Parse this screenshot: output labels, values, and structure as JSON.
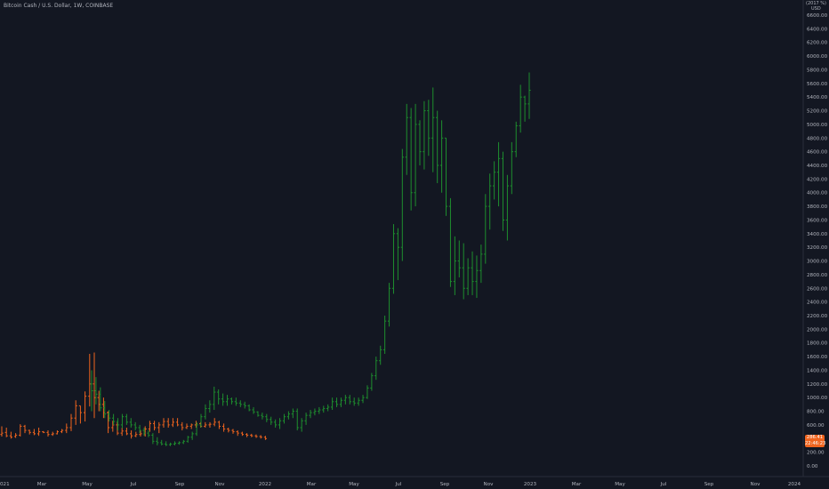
{
  "header": {
    "title": "Bitcoin Cash / U.S. Dollar, 1W, COINBASE"
  },
  "price_badge": {
    "price": "286.41",
    "countdown": "22:46:23",
    "color": "#f0641e"
  },
  "colors": {
    "background": "#131722",
    "bar_up": "#26a69a",
    "bar_green": "#1e8e2e",
    "bar_orange": "#f0641e",
    "axis_text": "#b2b5be",
    "axis_line": "#2a2e39"
  },
  "chart_data": {
    "type": "bar",
    "y_axis_unit_lines": [
      "(2017 %)",
      "USD"
    ],
    "y_ticks": [
      "6600.00",
      "6400.00",
      "6200.00",
      "6000.00",
      "5800.00",
      "5600.00",
      "5400.00",
      "5200.00",
      "5000.00",
      "4800.00",
      "4600.00",
      "4400.00",
      "4200.00",
      "4000.00",
      "3800.00",
      "3600.00",
      "3400.00",
      "3200.00",
      "3000.00",
      "2800.00",
      "2600.00",
      "2400.00",
      "2200.00",
      "2000.00",
      "1800.00",
      "1600.00",
      "1400.00",
      "1200.00",
      "1000.00",
      "800.00",
      "600.00",
      "400.00",
      "200.00",
      "0.00"
    ],
    "x_ticks": [
      "021",
      "Mar",
      "May",
      "Jul",
      "Sep",
      "Nov",
      "2022",
      "Mar",
      "May",
      "Jul",
      "Sep",
      "Nov",
      "2023",
      "Mar",
      "May",
      "Jul",
      "Sep",
      "Nov",
      "2024"
    ],
    "ylim": [
      0,
      6700
    ],
    "series": [
      {
        "color": "orange",
        "values": [
          [
            460,
            430,
            580,
            480
          ],
          [
            490,
            420,
            560,
            440
          ],
          [
            440,
            400,
            500,
            420
          ],
          [
            430,
            410,
            480,
            450
          ],
          [
            450,
            430,
            610,
            580
          ],
          [
            580,
            480,
            600,
            520
          ],
          [
            520,
            460,
            530,
            490
          ],
          [
            490,
            450,
            540,
            470
          ],
          [
            470,
            440,
            560,
            500
          ],
          [
            500,
            480,
            510,
            490
          ],
          [
            490,
            430,
            520,
            460
          ],
          [
            460,
            440,
            500,
            470
          ],
          [
            470,
            460,
            520,
            500
          ],
          [
            500,
            480,
            540,
            520
          ],
          [
            520,
            480,
            620,
            560
          ],
          [
            560,
            510,
            760,
            700
          ],
          [
            700,
            600,
            960,
            880
          ],
          [
            880,
            620,
            880,
            780
          ],
          [
            780,
            650,
            1090,
            1020
          ],
          [
            1020,
            870,
            1640,
            1200
          ],
          [
            1200,
            700,
            1660,
            1000
          ],
          [
            1000,
            800,
            1100,
            900
          ],
          [
            900,
            700,
            1000,
            780
          ],
          [
            780,
            480,
            800,
            560
          ],
          [
            560,
            500,
            660,
            600
          ],
          [
            600,
            450,
            640,
            480
          ],
          [
            480,
            440,
            560,
            510
          ],
          [
            510,
            450,
            560,
            470
          ],
          [
            470,
            400,
            520,
            440
          ],
          [
            440,
            420,
            500,
            460
          ],
          [
            460,
            430,
            520,
            470
          ],
          [
            470,
            430,
            580,
            540
          ],
          [
            540,
            500,
            660,
            620
          ],
          [
            620,
            520,
            660,
            560
          ],
          [
            560,
            480,
            640,
            600
          ],
          [
            600,
            560,
            700,
            650
          ],
          [
            650,
            560,
            700,
            600
          ],
          [
            600,
            570,
            700,
            640
          ],
          [
            640,
            580,
            700,
            600
          ],
          [
            600,
            520,
            640,
            560
          ],
          [
            560,
            540,
            620,
            580
          ],
          [
            580,
            540,
            620,
            600
          ],
          [
            600,
            560,
            660,
            620
          ],
          [
            620,
            560,
            640,
            580
          ],
          [
            580,
            560,
            640,
            600
          ],
          [
            600,
            560,
            640,
            610
          ],
          [
            610,
            580,
            700,
            640
          ],
          [
            640,
            540,
            660,
            580
          ],
          [
            580,
            500,
            620,
            540
          ],
          [
            540,
            490,
            560,
            520
          ],
          [
            520,
            470,
            540,
            500
          ],
          [
            500,
            440,
            520,
            480
          ],
          [
            480,
            440,
            500,
            460
          ],
          [
            460,
            420,
            480,
            450
          ],
          [
            450,
            420,
            470,
            440
          ],
          [
            440,
            410,
            460,
            430
          ],
          [
            430,
            400,
            450,
            420
          ],
          [
            420,
            380,
            440,
            400
          ]
        ]
      },
      {
        "color": "green",
        "values": [
          [
            1200,
            800,
            1400,
            1100
          ],
          [
            1100,
            900,
            1300,
            1050
          ],
          [
            1050,
            800,
            1150,
            850
          ],
          [
            850,
            700,
            950,
            760
          ],
          [
            760,
            650,
            820,
            700
          ],
          [
            700,
            600,
            760,
            650
          ],
          [
            650,
            520,
            700,
            600
          ],
          [
            600,
            550,
            760,
            720
          ],
          [
            720,
            600,
            760,
            640
          ],
          [
            640,
            560,
            700,
            600
          ],
          [
            600,
            520,
            640,
            560
          ],
          [
            560,
            480,
            600,
            520
          ],
          [
            520,
            440,
            560,
            480
          ],
          [
            480,
            420,
            520,
            450
          ],
          [
            450,
            320,
            480,
            360
          ],
          [
            360,
            300,
            420,
            340
          ],
          [
            340,
            300,
            380,
            320
          ],
          [
            320,
            290,
            360,
            310
          ],
          [
            310,
            290,
            340,
            320
          ],
          [
            320,
            300,
            360,
            330
          ],
          [
            330,
            310,
            360,
            340
          ],
          [
            340,
            320,
            380,
            360
          ],
          [
            360,
            340,
            440,
            420
          ],
          [
            420,
            380,
            500,
            470
          ],
          [
            470,
            440,
            640,
            600
          ],
          [
            600,
            560,
            760,
            720
          ],
          [
            720,
            680,
            900,
            840
          ],
          [
            840,
            780,
            960,
            900
          ],
          [
            900,
            820,
            1160,
            1080
          ],
          [
            1080,
            900,
            1120,
            980
          ],
          [
            980,
            880,
            1060,
            940
          ],
          [
            940,
            880,
            1040,
            980
          ],
          [
            980,
            900,
            1000,
            940
          ],
          [
            940,
            880,
            1000,
            920
          ],
          [
            920,
            860,
            960,
            900
          ],
          [
            900,
            840,
            940,
            880
          ],
          [
            880,
            800,
            900,
            820
          ],
          [
            820,
            760,
            860,
            790
          ],
          [
            790,
            720,
            800,
            740
          ],
          [
            740,
            680,
            780,
            720
          ],
          [
            720,
            640,
            760,
            680
          ],
          [
            680,
            600,
            720,
            640
          ],
          [
            640,
            560,
            680,
            600
          ],
          [
            600,
            540,
            700,
            660
          ],
          [
            660,
            620,
            760,
            720
          ],
          [
            720,
            680,
            800,
            760
          ],
          [
            760,
            700,
            840,
            800
          ],
          [
            800,
            520,
            840,
            560
          ],
          [
            560,
            500,
            700,
            660
          ],
          [
            660,
            600,
            780,
            740
          ],
          [
            740,
            700,
            820,
            780
          ],
          [
            780,
            740,
            840,
            800
          ],
          [
            800,
            760,
            860,
            820
          ],
          [
            820,
            780,
            880,
            840
          ],
          [
            840,
            800,
            900,
            860
          ],
          [
            860,
            820,
            1000,
            940
          ],
          [
            940,
            860,
            1000,
            900
          ],
          [
            900,
            860,
            1000,
            960
          ],
          [
            960,
            900,
            1040,
            1000
          ],
          [
            1000,
            900,
            1040,
            940
          ],
          [
            940,
            880,
            1000,
            920
          ],
          [
            920,
            880,
            1000,
            960
          ],
          [
            960,
            920,
            1040,
            1000
          ],
          [
            1000,
            980,
            1180,
            1140
          ],
          [
            1140,
            1100,
            1360,
            1320
          ],
          [
            1320,
            1260,
            1600,
            1540
          ],
          [
            1540,
            1480,
            1760,
            1700
          ],
          [
            1700,
            1640,
            2200,
            2120
          ],
          [
            2120,
            2040,
            2680,
            2600
          ],
          [
            2600,
            2520,
            3540,
            3400
          ],
          [
            3400,
            2720,
            3480,
            3200
          ],
          [
            3200,
            3000,
            4640,
            4520
          ],
          [
            4520,
            4260,
            5300,
            5100
          ],
          [
            5100,
            3740,
            5240,
            4000
          ],
          [
            4000,
            3800,
            5300,
            5000
          ],
          [
            5000,
            4400,
            5060,
            4600
          ],
          [
            4600,
            4340,
            5340,
            5200
          ],
          [
            5200,
            4540,
            5360,
            4800
          ],
          [
            4800,
            4300,
            5540,
            5100
          ],
          [
            5100,
            4140,
            5200,
            4400
          ],
          [
            4400,
            4000,
            5060,
            4800
          ],
          [
            4800,
            3660,
            4800,
            3800
          ],
          [
            3800,
            2620,
            3920,
            2700
          ],
          [
            2700,
            2500,
            3360,
            3000
          ],
          [
            3000,
            2760,
            3300,
            2900
          ],
          [
            2900,
            2440,
            3260,
            2600
          ],
          [
            2600,
            2500,
            3040,
            2900
          ],
          [
            2900,
            2500,
            3140,
            2700
          ],
          [
            2700,
            2460,
            3080,
            2860
          ],
          [
            2860,
            2680,
            3240,
            3100
          ],
          [
            3100,
            2960,
            3980,
            3800
          ],
          [
            3800,
            3460,
            4280,
            4100
          ],
          [
            4100,
            3900,
            4460,
            4300
          ],
          [
            4300,
            3800,
            4740,
            4500
          ],
          [
            4500,
            3440,
            4600,
            3600
          ],
          [
            3600,
            3300,
            4260,
            4100
          ],
          [
            4100,
            3980,
            4740,
            4600
          ],
          [
            4600,
            4520,
            5040,
            4980
          ],
          [
            4980,
            4880,
            5580,
            5400
          ],
          [
            5400,
            5040,
            5420,
            5300
          ],
          [
            5300,
            5080,
            5760,
            5500
          ]
        ]
      }
    ]
  }
}
